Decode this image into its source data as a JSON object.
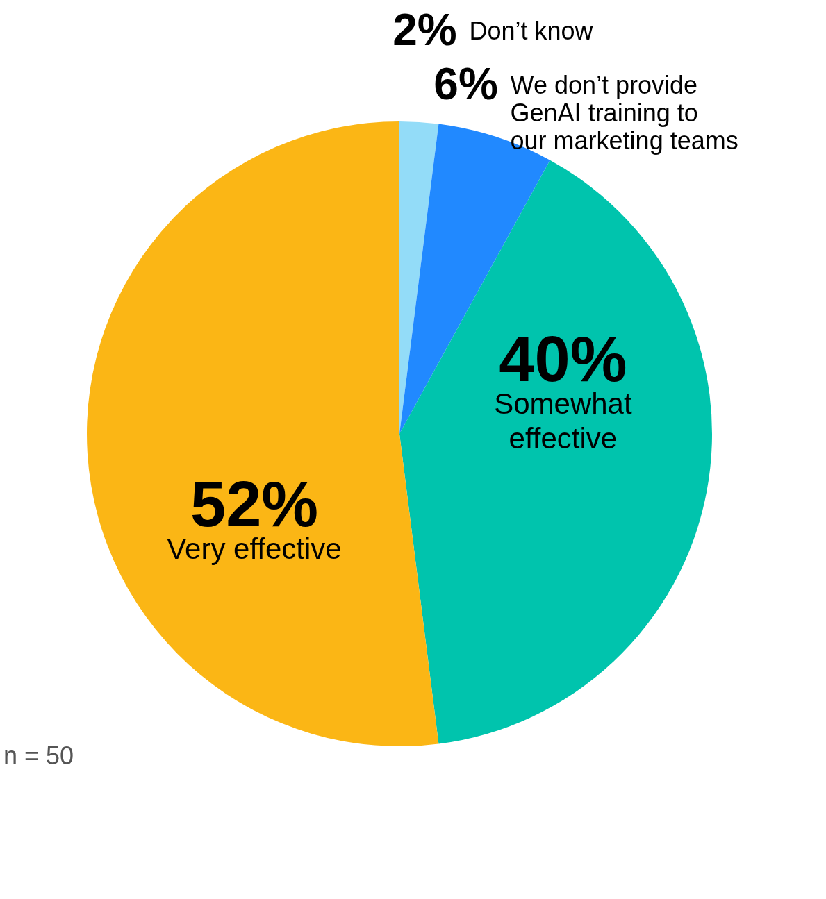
{
  "chart_data": {
    "type": "pie",
    "categories": [
      "Don’t know",
      "We don’t provide GenAI training to our marketing teams",
      "Somewhat effective",
      "Very effective"
    ],
    "values": [
      2,
      6,
      40,
      52
    ],
    "value_labels": [
      "2%",
      "6%",
      "40%",
      "52%"
    ],
    "colors": [
      "#93dcf8",
      "#2189ff",
      "#00c4ad",
      "#fbb615"
    ],
    "annotations": [
      "n = 50"
    ]
  }
}
